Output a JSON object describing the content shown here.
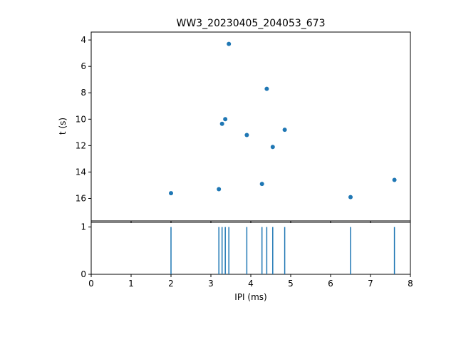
{
  "figure": {
    "title": "WW3_20230405_204053_673",
    "background": "#ffffff",
    "accent": "#1f77b4"
  },
  "chart_data": [
    {
      "type": "scatter",
      "title": "WW3_20230405_204053_673",
      "xlabel": "",
      "ylabel": "t (s)",
      "xlim": [
        0,
        8
      ],
      "ylim": [
        3.4,
        17.7
      ],
      "y_inverted": true,
      "yticks": [
        4,
        6,
        8,
        10,
        12,
        14,
        16
      ],
      "xticks": [
        0,
        1,
        2,
        3,
        4,
        5,
        6,
        7,
        8
      ],
      "x_tick_labels_visible": false,
      "grid": false,
      "legend": "none",
      "marker_color": "#1f77b4",
      "x": [
        2.0,
        3.2,
        3.28,
        3.36,
        3.45,
        3.9,
        4.28,
        4.4,
        4.55,
        4.85,
        6.5,
        7.6
      ],
      "y": [
        15.6,
        15.3,
        10.35,
        10.0,
        4.3,
        11.2,
        14.9,
        7.7,
        12.1,
        10.8,
        15.9,
        14.6
      ]
    },
    {
      "type": "event",
      "title": "",
      "xlabel": "IPI (ms)",
      "ylabel": "",
      "xlim": [
        0,
        8
      ],
      "ylim": [
        0,
        1.1
      ],
      "xticks": [
        0,
        1,
        2,
        3,
        4,
        5,
        6,
        7,
        8
      ],
      "yticks": [
        0,
        1
      ],
      "grid": false,
      "legend": "none",
      "line_color": "#1f77b4",
      "line_top": 1,
      "line_bottom": 0,
      "events": [
        2.0,
        3.2,
        3.28,
        3.36,
        3.45,
        3.9,
        4.28,
        4.4,
        4.55,
        4.85,
        6.5,
        7.6
      ]
    }
  ]
}
